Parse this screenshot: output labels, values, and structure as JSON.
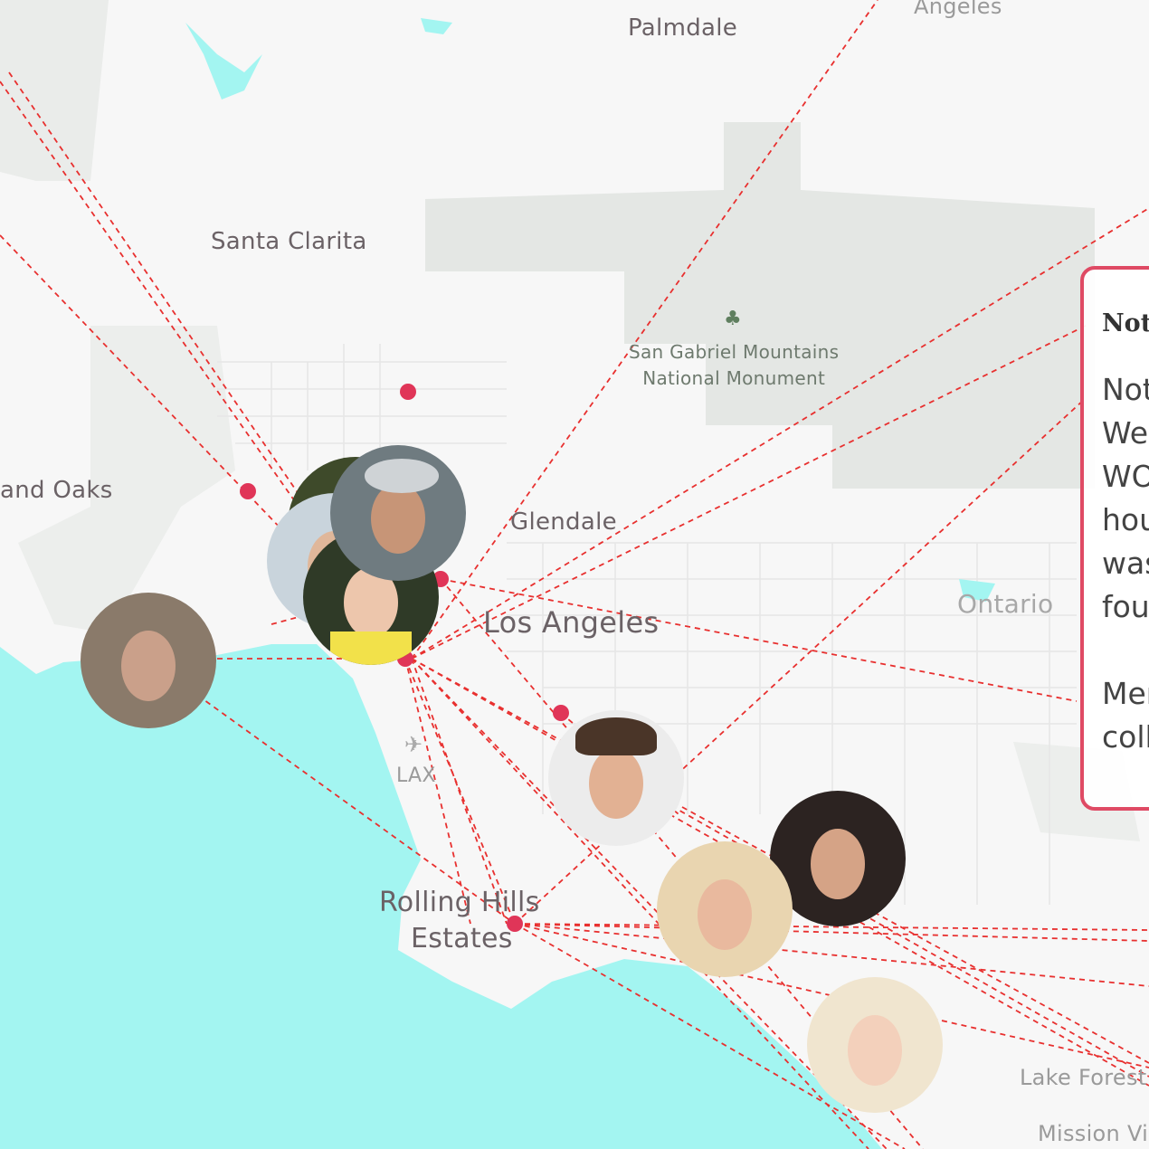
{
  "map": {
    "colors": {
      "ocean": "#a3f5f1",
      "land": "#f7f7f7",
      "parks": "#e2e6e2",
      "route": "#e8302f",
      "marker": "#e03558",
      "panel_border": "#df4a64"
    },
    "labels": [
      {
        "id": "palmdale",
        "text": "Palmdale"
      },
      {
        "id": "angeles",
        "text": "Angeles"
      },
      {
        "id": "santa-clarita",
        "text": "Santa Clarita"
      },
      {
        "id": "thousand-oaks",
        "text": "and Oaks"
      },
      {
        "id": "glendale",
        "text": "Glendale"
      },
      {
        "id": "los-angeles",
        "text": "Los Angeles"
      },
      {
        "id": "lax",
        "text": "LAX"
      },
      {
        "id": "rolling-hills",
        "text": "Rolling Hills"
      },
      {
        "id": "rolling-hills-2",
        "text": "Estates"
      },
      {
        "id": "lake-forest",
        "text": "Lake Forest"
      },
      {
        "id": "mission-viejo",
        "text": "Mission Vi"
      },
      {
        "id": "ontario",
        "text": "Ontario"
      }
    ],
    "park": {
      "line1": "San Gabriel Mountains",
      "line2": "National Monument",
      "icon": "tree-icon"
    },
    "airport_icon": "airplane-icon"
  },
  "panel": {
    "title": "Not",
    "lines": [
      "Not",
      "Wes",
      "WO",
      "hou",
      "was",
      "fou",
      "",
      "Mer",
      "coll"
    ]
  }
}
